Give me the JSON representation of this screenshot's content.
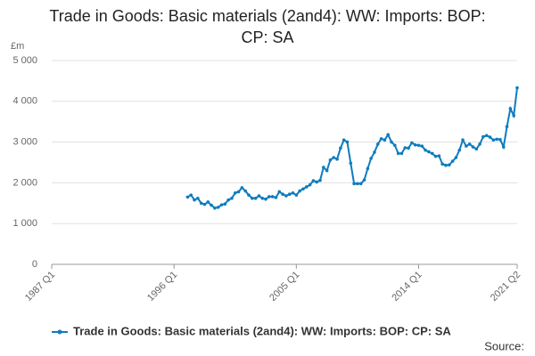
{
  "chart_data": {
    "type": "line",
    "title": "Trade in Goods: Basic materials (2and4): WW: Imports: BOP: CP: SA",
    "y_unit": "£m",
    "source": "Source:",
    "categories": [
      "1987 Q1",
      null,
      null,
      null,
      null,
      null,
      null,
      null,
      null,
      null,
      null,
      null,
      null,
      null,
      null,
      null,
      null,
      null,
      null,
      null,
      null,
      null,
      null,
      null,
      null,
      null,
      null,
      null,
      null,
      null,
      null,
      null,
      null,
      null,
      null,
      null,
      "1996 Q1",
      null,
      null,
      null,
      null,
      null,
      null,
      null,
      null,
      null,
      null,
      null,
      null,
      null,
      null,
      null,
      null,
      null,
      null,
      null,
      null,
      null,
      null,
      null,
      null,
      null,
      null,
      null,
      null,
      null,
      null,
      null,
      null,
      null,
      null,
      null,
      "2005 Q1",
      null,
      null,
      null,
      null,
      null,
      null,
      null,
      null,
      null,
      null,
      null,
      null,
      null,
      null,
      null,
      null,
      null,
      null,
      null,
      null,
      null,
      null,
      null,
      null,
      null,
      null,
      null,
      null,
      null,
      null,
      null,
      null,
      null,
      null,
      null,
      "2014 Q1",
      null,
      null,
      null,
      null,
      null,
      null,
      null,
      null,
      null,
      null,
      null,
      null,
      null,
      null,
      null,
      null,
      null,
      null,
      null,
      null,
      null,
      null,
      null,
      null,
      null,
      null,
      null,
      null,
      "2021 Q2"
    ],
    "series": [
      {
        "name": "Trade in Goods: Basic materials (2and4): WW: Imports: BOP: CP: SA",
        "color": "#0f7cbf",
        "values": [
          null,
          null,
          null,
          null,
          null,
          null,
          null,
          null,
          null,
          null,
          null,
          null,
          null,
          null,
          null,
          null,
          null,
          null,
          null,
          null,
          null,
          null,
          null,
          null,
          null,
          null,
          null,
          null,
          null,
          null,
          null,
          null,
          null,
          null,
          null,
          null,
          null,
          null,
          null,
          null,
          1650,
          1700,
          1580,
          1620,
          1500,
          1470,
          1530,
          1450,
          1380,
          1400,
          1460,
          1480,
          1580,
          1620,
          1750,
          1780,
          1880,
          1800,
          1700,
          1620,
          1620,
          1680,
          1620,
          1600,
          1660,
          1660,
          1640,
          1780,
          1720,
          1680,
          1720,
          1750,
          1700,
          1800,
          1850,
          1900,
          1950,
          2050,
          2020,
          2060,
          2380,
          2300,
          2560,
          2620,
          2580,
          2850,
          3050,
          3000,
          2480,
          1980,
          1980,
          1980,
          2070,
          2350,
          2600,
          2750,
          2950,
          3080,
          3050,
          3180,
          3000,
          2920,
          2720,
          2720,
          2860,
          2850,
          2980,
          2930,
          2920,
          2900,
          2800,
          2760,
          2720,
          2650,
          2660,
          2460,
          2430,
          2440,
          2530,
          2620,
          2800,
          3050,
          2900,
          2950,
          2880,
          2830,
          2950,
          3130,
          3160,
          3120,
          3050,
          3070,
          3060,
          2880,
          3380,
          3820,
          3650,
          4330
        ]
      }
    ],
    "ylim": [
      0,
      5000
    ],
    "yticks": [
      0,
      {
        "value": 1000,
        "label": "1 000"
      },
      {
        "value": 2000,
        "label": "2 000"
      },
      {
        "value": 3000,
        "label": "3 000"
      },
      {
        "value": 4000,
        "label": "4 000"
      },
      {
        "value": 5000,
        "label": "5 000"
      }
    ],
    "grid": true
  }
}
